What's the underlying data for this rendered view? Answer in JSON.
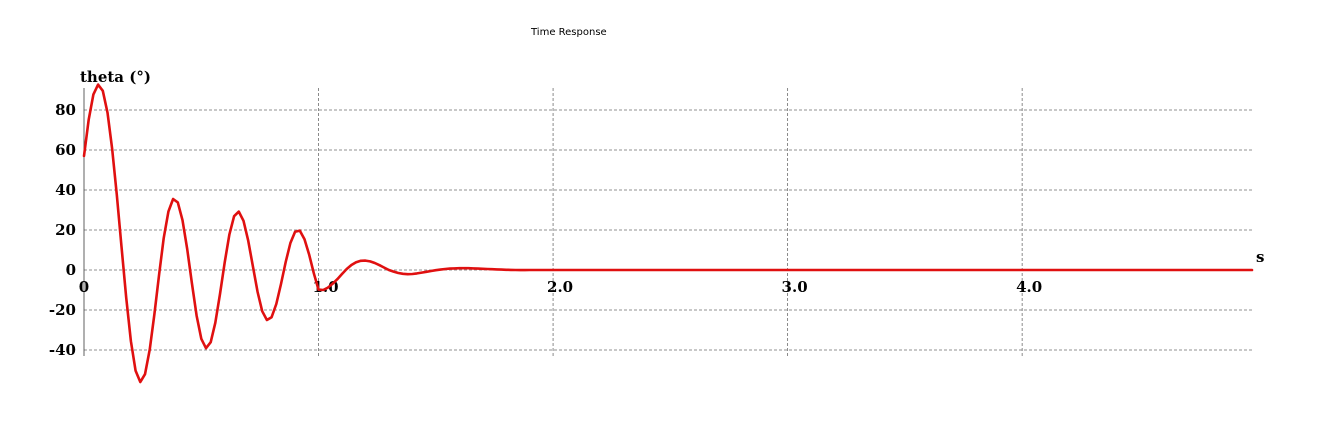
{
  "chart_data": {
    "type": "line",
    "title": "Time Response",
    "ylabel": "theta (°)",
    "xlabel": "s",
    "xlim": [
      0,
      4.98
    ],
    "ylim": [
      -42,
      90
    ],
    "grid": true,
    "x_ticks": [
      {
        "value": 0,
        "label": "0"
      },
      {
        "value": 1,
        "label": "1.0"
      },
      {
        "value": 2,
        "label": "2.0"
      },
      {
        "value": 3,
        "label": "3.0"
      },
      {
        "value": 4,
        "label": "4.0"
      }
    ],
    "y_ticks": [
      {
        "value": 80,
        "label": "80"
      },
      {
        "value": 60,
        "label": "60"
      },
      {
        "value": 40,
        "label": "40"
      },
      {
        "value": 20,
        "label": "20"
      },
      {
        "value": 0,
        "label": "0"
      },
      {
        "value": -20,
        "label": "-20"
      },
      {
        "value": -40,
        "label": "-40"
      }
    ],
    "series": [
      {
        "color": "#e01010",
        "x": [
          0,
          0.02,
          0.04,
          0.06,
          0.08,
          0.1,
          0.12,
          0.14,
          0.16,
          0.18,
          0.2,
          0.22,
          0.24,
          0.26,
          0.28,
          0.3,
          0.32,
          0.34,
          0.36,
          0.38,
          0.4,
          0.42,
          0.44,
          0.46,
          0.48,
          0.5,
          0.52,
          0.54,
          0.56,
          0.58,
          0.6,
          0.62,
          0.64,
          0.66,
          0.68,
          0.7,
          0.72,
          0.74,
          0.76,
          0.78,
          0.8,
          0.82,
          0.84,
          0.86,
          0.88,
          0.9,
          0.92,
          0.94,
          0.96,
          0.98,
          1.0,
          1.02,
          1.04,
          1.06,
          1.08,
          1.1,
          1.12,
          1.14,
          1.16,
          1.18,
          1.2,
          1.22,
          1.24,
          1.26,
          1.28,
          1.3,
          1.32,
          1.34,
          1.36,
          1.38,
          1.4,
          1.42,
          1.44,
          1.46,
          1.48,
          1.5,
          1.52,
          1.54,
          1.56,
          1.58,
          1.6,
          1.62,
          1.64,
          1.66,
          1.68,
          1.7,
          1.72,
          1.74,
          1.76,
          1.78,
          1.8,
          1.82,
          1.84,
          1.86,
          1.88,
          1.9,
          1.92,
          1.94,
          1.96,
          1.98,
          2.0,
          2.1,
          2.2,
          2.3,
          2.4,
          2.5,
          2.6,
          2.7,
          2.8,
          2.9,
          3.0,
          3.25,
          3.5,
          3.75,
          4.0,
          4.25,
          4.5,
          4.75,
          4.98
        ],
        "y": [
          57.0,
          75.2,
          87.8,
          92.7,
          89.6,
          78.7,
          60.8,
          37.6,
          11.7,
          -13.8,
          -35.6,
          -50.4,
          -56.0,
          -52.1,
          -39.9,
          -22.1,
          -2.3,
          15.9,
          29.2,
          35.5,
          33.8,
          24.9,
          10.5,
          -6.6,
          -22.8,
          -34.4,
          -39.1,
          -36.1,
          -26.4,
          -12.0,
          3.8,
          17.8,
          26.9,
          29.2,
          24.6,
          14.7,
          1.8,
          -11.0,
          -20.6,
          -25.0,
          -23.6,
          -17.0,
          -7.0,
          4.0,
          13.5,
          19.1,
          19.7,
          15.4,
          7.6,
          -1.6,
          -9.8,
          -10.0,
          -8.8,
          -6.9,
          -4.6,
          -2.0,
          0.5,
          2.5,
          3.9,
          4.6,
          4.7,
          4.3,
          3.5,
          2.4,
          1.2,
          0.0,
          -0.8,
          -1.5,
          -1.9,
          -2.1,
          -2.0,
          -1.7,
          -1.3,
          -0.9,
          -0.5,
          -0.1,
          0.2,
          0.5,
          0.7,
          0.8,
          0.9,
          0.9,
          0.9,
          0.8,
          0.7,
          0.6,
          0.5,
          0.4,
          0.3,
          0.2,
          0.1,
          0.05,
          0.0,
          -0.05,
          -0.05,
          0.0,
          0.0,
          0.0,
          0.0,
          0.0,
          0.0,
          0.0,
          0.0,
          0.0,
          0.0,
          0.0,
          0.0,
          0.0,
          0.0,
          0.0,
          0.0,
          0.0,
          0.0,
          0.0,
          0.0,
          0.0,
          0.0,
          0.0,
          0.0
        ]
      }
    ]
  }
}
